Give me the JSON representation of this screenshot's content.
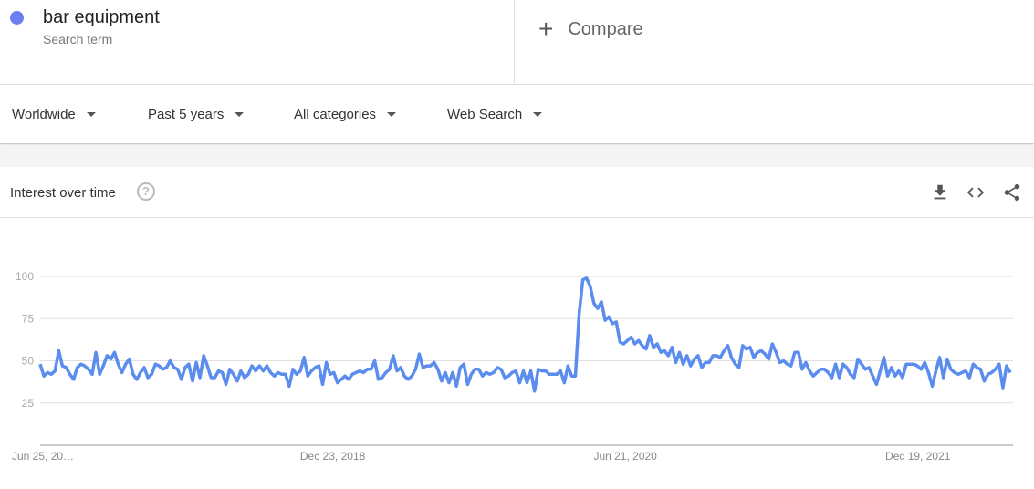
{
  "search_term": {
    "name": "bar equipment",
    "sublabel": "Search term",
    "color": "#6c7ff0"
  },
  "compare": {
    "label": "Compare",
    "icon": "plus-icon"
  },
  "filters": [
    {
      "label": "Worldwide"
    },
    {
      "label": "Past 5 years"
    },
    {
      "label": "All categories"
    },
    {
      "label": "Web Search"
    }
  ],
  "card": {
    "title": "Interest over time",
    "help_icon": "?",
    "actions": [
      "download-icon",
      "embed-icon",
      "share-icon"
    ]
  },
  "chart_data": {
    "type": "line",
    "title": "",
    "xlabel": "",
    "ylabel": "",
    "ylim": [
      0,
      100
    ],
    "y_ticks": [
      25,
      50,
      75,
      100
    ],
    "x_tick_labels": [
      "Jun 25, 20…",
      "Dec 23, 2018",
      "Jun 21, 2020",
      "Dec 19, 2021"
    ],
    "grid": true,
    "series": [
      {
        "color": "#5b8def",
        "values": [
          48,
          41,
          43,
          42,
          44,
          56,
          47,
          46,
          42,
          39,
          46,
          48,
          47,
          45,
          42,
          55,
          42,
          47,
          53,
          51,
          55,
          48,
          43,
          48,
          51,
          42,
          39,
          43,
          46,
          40,
          42,
          48,
          47,
          45,
          46,
          50,
          46,
          45,
          39,
          46,
          48,
          38,
          49,
          40,
          53,
          47,
          40,
          40,
          44,
          43,
          36,
          45,
          42,
          38,
          44,
          40,
          42,
          47,
          44,
          47,
          44,
          47,
          43,
          41,
          43,
          42,
          42,
          35,
          45,
          42,
          44,
          52,
          41,
          44,
          46,
          47,
          36,
          49,
          42,
          43,
          37,
          39,
          41,
          39,
          42,
          43,
          44,
          43,
          45,
          45,
          50,
          39,
          40,
          43,
          45,
          53,
          44,
          46,
          41,
          39,
          41,
          45,
          54,
          46,
          47,
          47,
          49,
          45,
          38,
          43,
          37,
          43,
          35,
          46,
          48,
          36,
          42,
          45,
          45,
          41,
          43,
          42,
          43,
          46,
          45,
          40,
          41,
          43,
          44,
          37,
          44,
          37,
          44,
          32,
          45,
          44,
          44,
          42,
          42,
          42,
          44,
          37,
          47,
          41,
          41,
          78,
          98,
          99,
          94,
          84,
          81,
          85,
          74,
          76,
          72,
          73,
          61,
          60,
          62,
          64,
          60,
          62,
          59,
          57,
          65,
          58,
          60,
          55,
          56,
          53,
          58,
          49,
          55,
          48,
          53,
          47,
          51,
          53,
          46,
          49,
          49,
          53,
          53,
          52,
          56,
          59,
          52,
          48,
          46,
          59,
          57,
          58,
          52,
          55,
          56,
          54,
          51,
          60,
          55,
          49,
          50,
          48,
          47,
          55,
          55,
          45,
          49,
          44,
          41,
          43,
          45,
          45,
          43,
          40,
          48,
          40,
          48,
          46,
          42,
          40,
          51,
          48,
          45,
          46,
          41,
          36,
          44,
          52,
          41,
          46,
          41,
          44,
          40,
          48,
          48,
          48,
          47,
          45,
          49,
          43,
          35,
          44,
          52,
          40,
          51,
          45,
          43,
          42,
          43,
          44,
          40,
          48,
          46,
          45,
          38,
          42,
          43,
          45,
          48,
          34,
          47,
          43
        ]
      }
    ]
  }
}
